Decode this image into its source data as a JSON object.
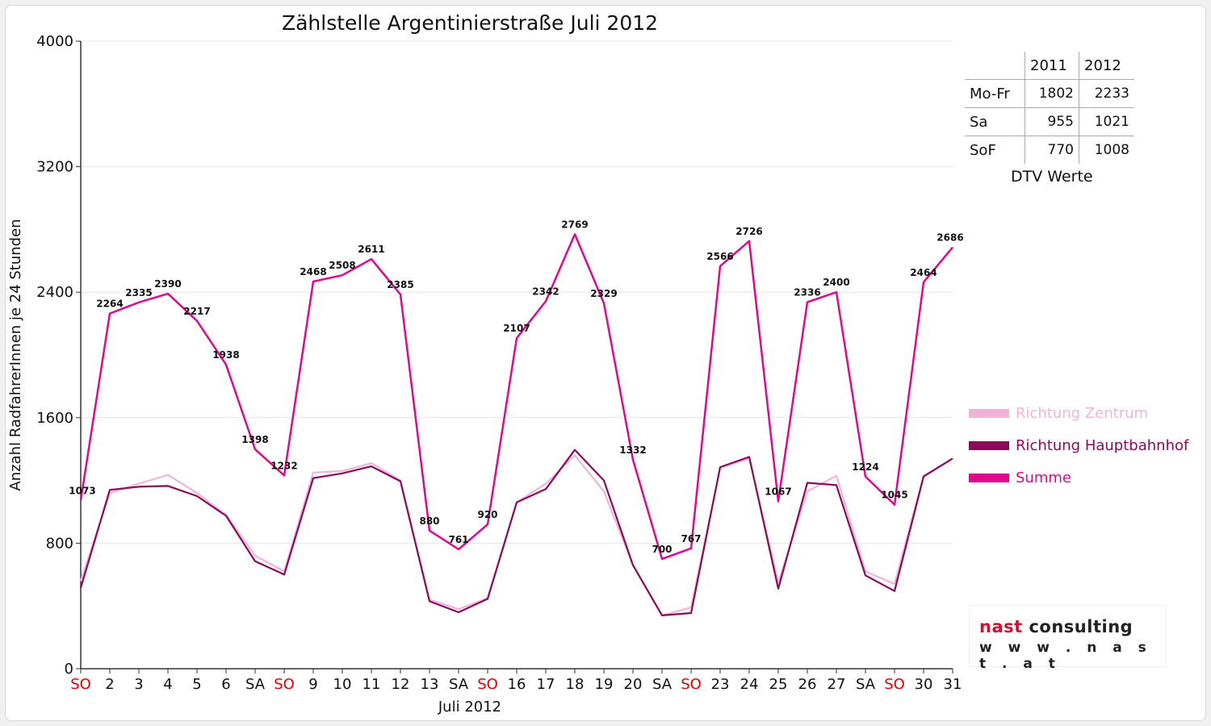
{
  "chart_data": {
    "type": "line",
    "title": "Zählstelle Argentinierstraße Juli 2012",
    "xlabel": "Juli 2012",
    "ylabel": "Anzahl RadfahrerInnen je 24 Stunden",
    "ylim": [
      0,
      4000
    ],
    "yticks": [
      "0",
      "800",
      "1600",
      "2400",
      "3200",
      "4000"
    ],
    "categories": [
      "SO",
      "2",
      "3",
      "4",
      "5",
      "6",
      "SA",
      "SO",
      "9",
      "10",
      "11",
      "12",
      "13",
      "SA",
      "SO",
      "16",
      "17",
      "18",
      "19",
      "20",
      "SA",
      "SO",
      "23",
      "24",
      "25",
      "26",
      "27",
      "SA",
      "SO",
      "30",
      "31"
    ],
    "red_categories": [
      0,
      7,
      14,
      21,
      28
    ],
    "grid": "horizontal",
    "legend_position": "right",
    "series": [
      {
        "name": "Richtung Zentrum",
        "color": "#f0b4da",
        "values": [
          560,
          1120,
          1180,
          1235,
          1120,
          980,
          720,
          620,
          1250,
          1260,
          1310,
          1200,
          440,
          380,
          450,
          1060,
          1180,
          1360,
          1130,
          660,
          340,
          390,
          1280,
          1340,
          550,
          1130,
          1230,
          620,
          540,
          1230,
          1340
        ]
      },
      {
        "name": "Richtung Hauptbahnhof",
        "color": "#8b0a5e",
        "values": [
          515,
          1140,
          1160,
          1165,
          1100,
          975,
          685,
          600,
          1215,
          1245,
          1290,
          1195,
          430,
          360,
          445,
          1060,
          1145,
          1395,
          1200,
          660,
          340,
          355,
          1285,
          1350,
          510,
          1185,
          1170,
          595,
          495,
          1225,
          1340
        ]
      },
      {
        "name": "Summe",
        "color": "#e0088c",
        "values": [
          1073,
          2264,
          2335,
          2390,
          2217,
          1938,
          1398,
          1232,
          2468,
          2508,
          2611,
          2385,
          880,
          761,
          920,
          2107,
          2342,
          2769,
          2329,
          1332,
          700,
          767,
          2566,
          2726,
          1067,
          2336,
          2400,
          1224,
          1045,
          2464,
          2686
        ]
      }
    ],
    "data_labels": [
      "1073",
      "2264",
      "2335",
      "2390",
      "2217",
      "1938",
      "1398",
      "1232",
      "2468",
      "2508",
      "2611",
      "2385",
      "880",
      "761",
      "920",
      "2107",
      "2342",
      "2769",
      "2329",
      "1332",
      "700",
      "767",
      "2566",
      "2726",
      "1067",
      "2336",
      "2400",
      "1224",
      "1045",
      "2464",
      "2686"
    ]
  },
  "dtv_table": {
    "headers": [
      "",
      "2011",
      "2012"
    ],
    "rows": [
      {
        "label": "Mo-Fr",
        "v2011": "1802",
        "v2012": "2233"
      },
      {
        "label": "Sa",
        "v2011": "955",
        "v2012": "1021"
      },
      {
        "label": "SoF",
        "v2011": "770",
        "v2012": "1008"
      }
    ],
    "caption": "DTV Werte"
  },
  "logo": {
    "line1_accent": "nast",
    "line1_rest": " consulting",
    "line2": "w w w . n a s t . a t"
  },
  "colors": {
    "sunday_red": "#e00000",
    "axis": "#333333",
    "grid": "#e4e4e4"
  }
}
